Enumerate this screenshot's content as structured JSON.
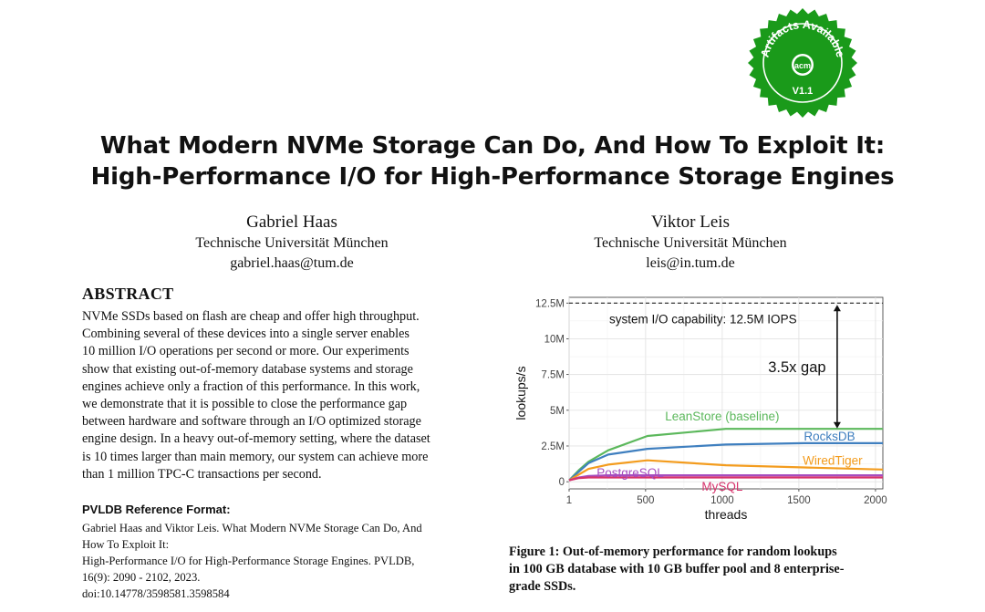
{
  "title": {
    "line1": "What Modern NVMe Storage Can Do, And How To Exploit It:",
    "line2": "High-Performance I/O for High-Performance Storage Engines"
  },
  "badge": {
    "text_top": "Artifacts Available",
    "logo": "acm",
    "version": "V1.1",
    "color": "#1a9a1a"
  },
  "authors": [
    {
      "name": "Gabriel Haas",
      "affiliation": "Technische Universität München",
      "email": "gabriel.haas@tum.de"
    },
    {
      "name": "Viktor Leis",
      "affiliation": "Technische Universität München",
      "email": "leis@in.tum.de"
    }
  ],
  "abstract": {
    "heading": "ABSTRACT",
    "lines": [
      "NVMe SSDs based on flash are cheap and offer high throughput.",
      "Combining several of these devices into a single server enables",
      "10 million I/O operations per second or more. Our experiments",
      "show that existing out-of-memory database systems and storage",
      "engines achieve only a fraction of this performance. In this work,",
      "we demonstrate that it is possible to close the performance gap",
      "between hardware and software through an I/O optimized storage",
      "engine design. In a heavy out-of-memory setting, where the dataset",
      "is 10 times larger than main memory, our system can achieve more",
      "than 1 million TPC-C transactions per second."
    ]
  },
  "reference": {
    "heading": "PVLDB Reference Format:",
    "lines": [
      "Gabriel Haas and Viktor Leis. What Modern NVMe Storage Can Do, And",
      "How To Exploit It:",
      "High-Performance I/O for High-Performance Storage Engines. PVLDB,",
      "16(9): 2090 - 2102, 2023.",
      "doi:10.14778/3598581.3598584"
    ]
  },
  "caption": {
    "lines": [
      "Figure 1: Out-of-memory performance for random lookups",
      "in 100 GB database with 10 GB buffer pool and 8 enterprise-",
      "grade SSDs."
    ]
  },
  "chart_data": {
    "type": "line",
    "xlabel": "threads",
    "ylabel": "lookups/s",
    "xlim": [
      1,
      2048
    ],
    "ylim": [
      -0.5,
      12.9
    ],
    "x_ticks": [
      1,
      500,
      1000,
      1500,
      2000
    ],
    "y_ticks": [
      0,
      2.5,
      5,
      7.5,
      10,
      12.5
    ],
    "y_tick_labels": [
      "0",
      "2.5M",
      "5M",
      "7.5M",
      "10M",
      "12.5M"
    ],
    "grid": true,
    "reference_line": {
      "y": 12.5,
      "label": "system I/O capability: 12.5M IOPS"
    },
    "gap_annotation": {
      "label": "3.5x gap",
      "x": 1750,
      "y_from": 3.6,
      "y_to": 12.5
    },
    "series": [
      {
        "name": "LeanStore (baseline)",
        "color": "#5cb85c",
        "x": [
          1,
          64,
          128,
          256,
          512,
          1024,
          1536,
          2048
        ],
        "y": [
          0.1,
          0.8,
          1.4,
          2.2,
          3.2,
          3.7,
          3.7,
          3.7
        ]
      },
      {
        "name": "RocksDB",
        "color": "#3f7fbf",
        "x": [
          1,
          64,
          128,
          256,
          512,
          1024,
          1536,
          2048
        ],
        "y": [
          0.1,
          0.7,
          1.3,
          1.9,
          2.3,
          2.6,
          2.7,
          2.7
        ]
      },
      {
        "name": "WiredTiger",
        "color": "#f39c1e",
        "x": [
          1,
          64,
          128,
          256,
          512,
          1024,
          1536,
          2048
        ],
        "y": [
          0.1,
          0.5,
          0.9,
          1.2,
          1.5,
          1.15,
          1.0,
          0.85
        ]
      },
      {
        "name": "PostgreSQL",
        "color": "#a64dbf",
        "x": [
          1,
          64,
          128,
          256,
          512,
          1024,
          1536,
          2048
        ],
        "y": [
          0.1,
          0.3,
          0.4,
          0.45,
          0.45,
          0.45,
          0.45,
          0.45
        ]
      },
      {
        "name": "MySQL",
        "color": "#d6336c",
        "x": [
          1,
          64,
          128,
          256,
          512,
          1024,
          1536,
          2048
        ],
        "y": [
          0.1,
          0.25,
          0.3,
          0.3,
          0.3,
          0.3,
          0.3,
          0.3
        ]
      }
    ],
    "series_label_positions": [
      {
        "series": "LeanStore (baseline)",
        "x": 1000,
        "y": 4.6
      },
      {
        "series": "RocksDB",
        "x": 1700,
        "y": 3.2
      },
      {
        "series": "WiredTiger",
        "x": 1720,
        "y": 1.5
      },
      {
        "series": "PostgreSQL",
        "x": 400,
        "y": 0.65
      },
      {
        "series": "MySQL",
        "x": 1000,
        "y": -0.3
      }
    ]
  }
}
